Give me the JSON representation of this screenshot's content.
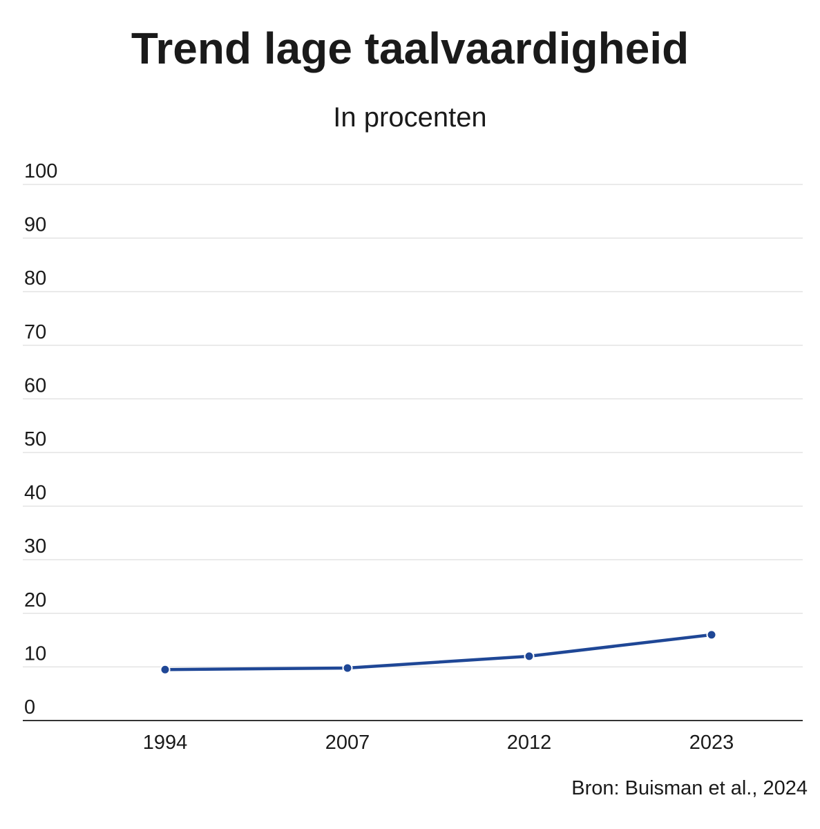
{
  "chart_data": {
    "type": "line",
    "title": "Trend lage taalvaardigheid",
    "subtitle": "In procenten",
    "categories": [
      "1994",
      "2007",
      "2012",
      "2023"
    ],
    "series": [
      {
        "values": [
          9.5,
          9.8,
          12.0,
          16.0
        ],
        "color": "#1f4796"
      }
    ],
    "y_ticks": [
      0,
      10,
      20,
      30,
      40,
      50,
      60,
      70,
      80,
      90,
      100
    ],
    "ylim": [
      0,
      100
    ],
    "grid": true,
    "legend": "none",
    "source": "Bron: Buisman et al., 2024"
  }
}
